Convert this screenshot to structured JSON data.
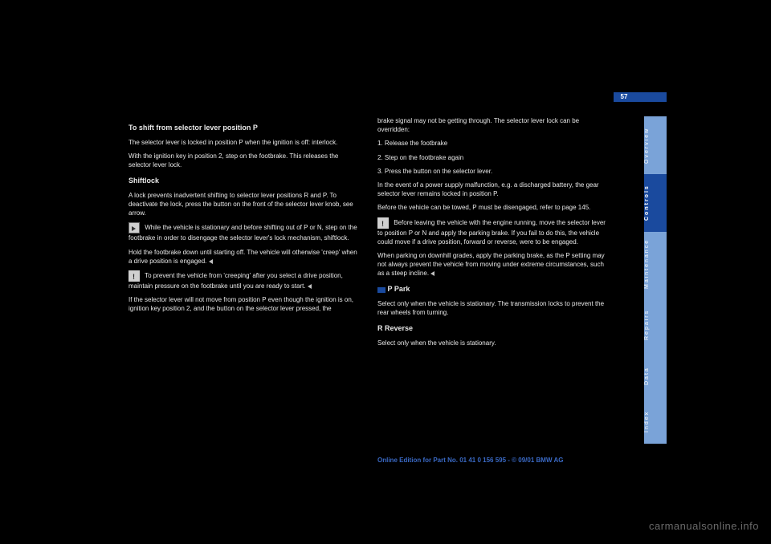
{
  "page": {
    "number": "57"
  },
  "tabs": {
    "overview": "Overview",
    "controls": "Controls",
    "maintenance": "Maintenance",
    "repairs": "Repairs",
    "data": "Data",
    "index": "Index"
  },
  "left": {
    "h1": "To shift from selector lever position P",
    "p1": "The selector lever is locked in position P when the ignition is off: interlock.",
    "p2": "With the ignition key in position 2, step on the footbrake. This releases the selector lever lock.",
    "h2": "Shiftlock",
    "p3": "A lock prevents inadvertent shifting to selector lever positions R and P. To deactivate the lock, press the button on the front of the selector lever knob, see arrow.",
    "h3": "While the vehicle is stationary and before shifting out of P or N, step on the footbrake in order to disengage the selector lever's lock mechanism, shiftlock.",
    "p4": "Hold the footbrake down until starting off. The vehicle will otherwise 'creep' when a drive position is engaged.",
    "p5": "To prevent the vehicle from 'creeping' after you select a drive position, maintain pressure on the footbrake until you are ready to start.",
    "p6": "If the selector lever will not move from position P even though the ignition is on, ignition key position 2, and the button on the selector lever pressed, the"
  },
  "right": {
    "p1": "brake signal may not be getting through. The selector lever lock can be overridden:",
    "p2": "1. Release the footbrake",
    "p3": "2. Step on the footbrake again",
    "p4": "3. Press the button on the selector lever.",
    "p5": "In the event of a power supply malfunction, e.g. a discharged battery, the gear selector lever remains locked in position P.",
    "p6": "Before the vehicle can be towed, P must be disengaged, refer to page 145.",
    "p7": "Before leaving the vehicle with the engine running, move the selector lever to position P or N and apply the parking brake. If you fail to do this, the vehicle could move if a drive position, forward or reverse, were to be engaged.",
    "p8": "When parking on downhill grades, apply the parking brake, as the P setting may not always prevent the vehicle from moving under extreme circumstances, such as a steep incline.",
    "h4": "P Park",
    "p9": "Select only when the vehicle is stationary. The transmission locks to prevent the rear wheels from turning.",
    "h5": "R Reverse",
    "p10": "Select only when the vehicle is stationary."
  },
  "footer": "Online Edition for Part No. 01 41 0 156 595 - © 09/01 BMW AG",
  "watermark": "carmanualsonline.info",
  "colors": {
    "bg": "#000000",
    "accent": "#1a4a9e",
    "tab_light": "#7aa3d8",
    "text": "#e8e8e8",
    "footer": "#3a69c4",
    "watermark": "#6a6a6a"
  }
}
